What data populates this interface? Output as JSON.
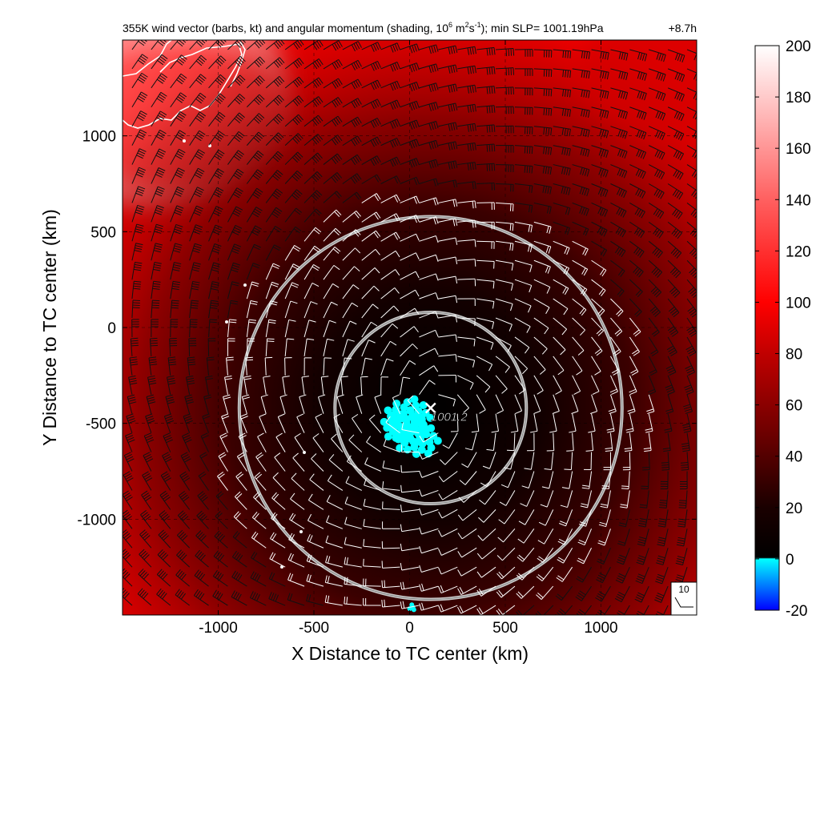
{
  "chart_data": {
    "type": "heatmap",
    "title": {
      "part1": "355K wind vector (barbs, kt) and angular momentum (shading, 10",
      "sup1": "6",
      "part2": " m",
      "sup2": "2",
      "part3": "s",
      "sup3": "-1",
      "part4": "); min SLP= 1001.19hPa",
      "time": "+8.7h"
    },
    "xlabel": "X Distance to TC center (km)",
    "ylabel": "Y Distance to TC center (km)",
    "xlim": [
      -1500,
      1500
    ],
    "ylim": [
      -1500,
      1500
    ],
    "x_ticks": [
      "-1000",
      "-500",
      "0",
      "500",
      "1000"
    ],
    "x_tick_values": [
      -1000,
      -500,
      0,
      500,
      1000
    ],
    "y_ticks": [
      "1000",
      "500",
      "0",
      "-500",
      "-1000"
    ],
    "y_tick_values": [
      1000,
      500,
      0,
      -500,
      -1000
    ],
    "grid": true,
    "colorbar": {
      "range": [
        -20,
        200
      ],
      "tick_labels": [
        "200",
        "180",
        "160",
        "140",
        "120",
        "100",
        "80",
        "60",
        "40",
        "20",
        "0",
        "-20"
      ],
      "tick_values": [
        200,
        180,
        160,
        140,
        120,
        100,
        80,
        60,
        40,
        20,
        0,
        -20
      ],
      "stops": [
        {
          "value": -20,
          "color": "#0000ff"
        },
        {
          "value": 0,
          "color": "#00ffff"
        },
        {
          "value": 0.5,
          "color": "#000000"
        },
        {
          "value": 20,
          "color": "#1a0000"
        },
        {
          "value": 50,
          "color": "#700000"
        },
        {
          "value": 80,
          "color": "#c00000"
        },
        {
          "value": 100,
          "color": "#ff0000"
        },
        {
          "value": 140,
          "color": "#ff6060"
        },
        {
          "value": 200,
          "color": "#ffffff"
        }
      ]
    },
    "tc_center": {
      "x": 110,
      "y": -420,
      "label": "1001.2",
      "marker": "x"
    },
    "rings_km": [
      500,
      1000
    ],
    "barb_reference": {
      "label": "10"
    },
    "barb_grid_spacing_km": 100,
    "cyan_blob_centers": [
      {
        "x": 0,
        "y": -460
      },
      {
        "x": 40,
        "y": -580
      },
      {
        "x": -20,
        "y": -520
      },
      {
        "x": 10,
        "y": -1460
      }
    ],
    "colors": {
      "coastline": "#ffffff",
      "ring": "#c8c8c8",
      "barb": "#ffffff",
      "barb_outer": "#000000"
    }
  }
}
